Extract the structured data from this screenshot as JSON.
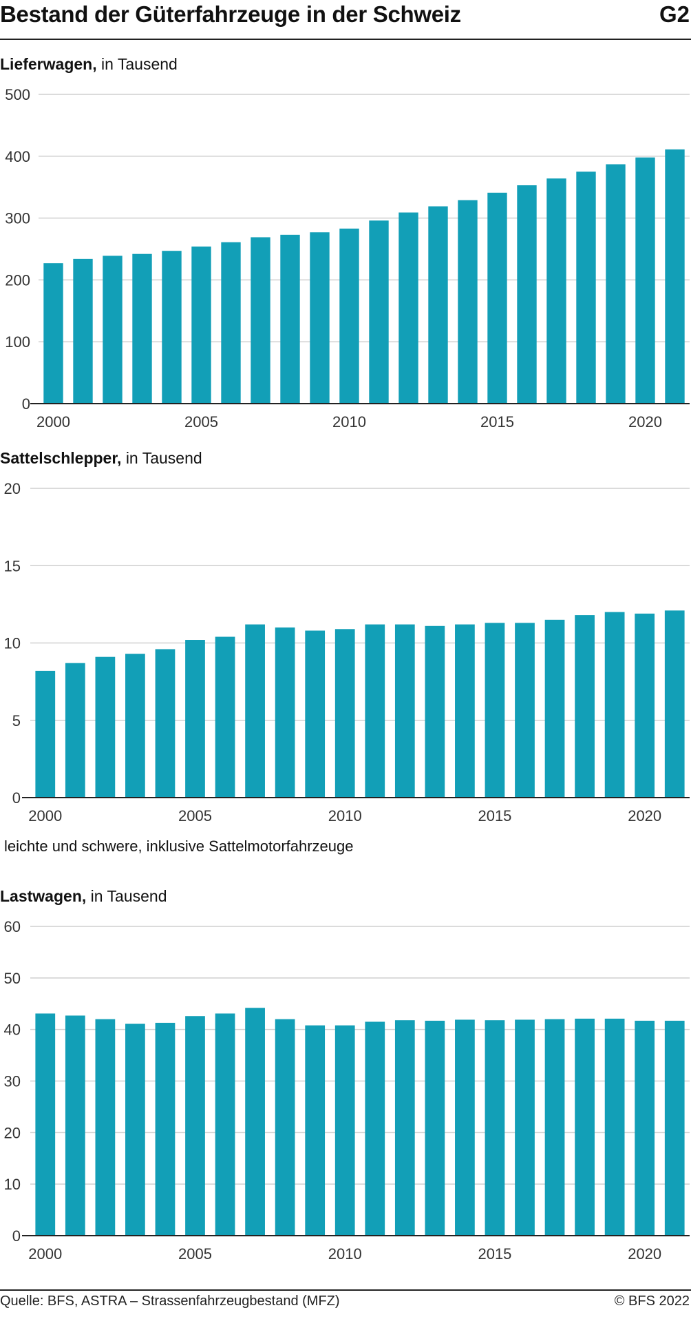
{
  "header": {
    "title": "Bestand der Güterfahrzeuge in der Schweiz",
    "code": "G2"
  },
  "chart_data": [
    {
      "type": "bar",
      "title": "Lieferwagen,",
      "subtitle": "in Tausend",
      "x": [
        2000,
        2001,
        2002,
        2003,
        2004,
        2005,
        2006,
        2007,
        2008,
        2009,
        2010,
        2011,
        2012,
        2013,
        2014,
        2015,
        2016,
        2017,
        2018,
        2019,
        2020,
        2021
      ],
      "values": [
        227,
        234,
        239,
        242,
        247,
        254,
        261,
        269,
        273,
        277,
        283,
        296,
        309,
        319,
        329,
        341,
        353,
        364,
        375,
        387,
        398,
        411
      ],
      "ylim": [
        0,
        500
      ],
      "yticks": [
        0,
        100,
        200,
        300,
        400,
        500
      ],
      "xticks": [
        2000,
        2005,
        2010,
        2015,
        2020
      ],
      "color": "#129fb7",
      "grid": true
    },
    {
      "type": "bar",
      "title": "Sattelschlepper,",
      "subtitle": "in Tausend",
      "x": [
        2000,
        2001,
        2002,
        2003,
        2004,
        2005,
        2006,
        2007,
        2008,
        2009,
        2010,
        2011,
        2012,
        2013,
        2014,
        2015,
        2016,
        2017,
        2018,
        2019,
        2020,
        2021
      ],
      "values": [
        8.2,
        8.7,
        9.1,
        9.3,
        9.6,
        10.2,
        10.4,
        11.2,
        11.0,
        10.8,
        10.9,
        11.2,
        11.2,
        11.1,
        11.2,
        11.3,
        11.3,
        11.5,
        11.8,
        12.0,
        11.9,
        12.1
      ],
      "ylim": [
        0,
        20
      ],
      "yticks": [
        0,
        5,
        10,
        15,
        20
      ],
      "xticks": [
        2000,
        2005,
        2010,
        2015,
        2020
      ],
      "color": "#129fb7",
      "grid": true
    },
    {
      "type": "bar",
      "title": "Lastwagen,",
      "subtitle": "in Tausend",
      "note": "leichte und schwere, inklusive Sattelmotorfahrzeuge",
      "x": [
        2000,
        2001,
        2002,
        2003,
        2004,
        2005,
        2006,
        2007,
        2008,
        2009,
        2010,
        2011,
        2012,
        2013,
        2014,
        2015,
        2016,
        2017,
        2018,
        2019,
        2020,
        2021
      ],
      "values": [
        43.1,
        42.7,
        42.0,
        41.1,
        41.3,
        42.6,
        43.1,
        44.2,
        42.0,
        40.8,
        40.8,
        41.5,
        41.8,
        41.7,
        41.9,
        41.8,
        41.9,
        42.0,
        42.1,
        42.1,
        41.7,
        41.7
      ],
      "ylim": [
        0,
        60
      ],
      "yticks": [
        0,
        10,
        20,
        30,
        40,
        50,
        60
      ],
      "xticks": [
        2000,
        2005,
        2010,
        2015,
        2020
      ],
      "color": "#129fb7",
      "grid": true
    }
  ],
  "footer": {
    "source": "Quelle: BFS, ASTRA – Strassenfahrzeugbestand (MFZ)",
    "copyright": "© BFS 2022"
  }
}
